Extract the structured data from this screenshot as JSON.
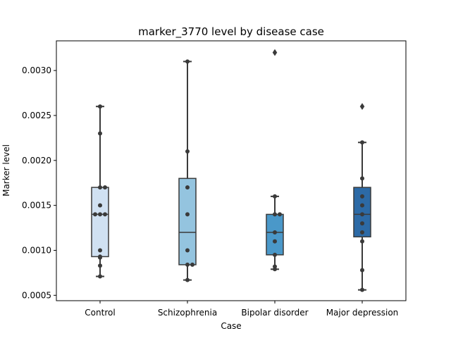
{
  "chart_data": {
    "type": "box",
    "title": "marker_3770 level by disease case",
    "xlabel": "Case",
    "ylabel": "Marker level",
    "ylim": [
      0.00044,
      0.00333
    ],
    "yticks": [
      0.0005,
      0.001,
      0.0015,
      0.002,
      0.0025,
      0.003
    ],
    "ytick_labels": [
      "0.0005",
      "0.0010",
      "0.0015",
      "0.0020",
      "0.0025",
      "0.0030"
    ],
    "grid": false,
    "legend": "none",
    "categories": [
      "Control",
      "Schizophrenia",
      "Bipolar disorder",
      "Major depression"
    ],
    "colors": [
      "#d0e1f2",
      "#94c4df",
      "#4a98c9",
      "#2c6aa6"
    ],
    "edge_color": "#3a3a3a",
    "point_color": "#3a3a3a",
    "boxes": [
      {
        "category": "Control",
        "whislo": 0.00071,
        "q1": 0.00093,
        "med": 0.0014,
        "q3": 0.0017,
        "whishi": 0.0026,
        "fliers": [],
        "points": [
          0.00071,
          0.00083,
          0.00092,
          0.00093,
          0.001,
          0.0014,
          0.0014,
          0.0014,
          0.0015,
          0.0017,
          0.0017,
          0.0023,
          0.0026
        ]
      },
      {
        "category": "Schizophrenia",
        "whislo": 0.00067,
        "q1": 0.00084,
        "med": 0.0012,
        "q3": 0.0018,
        "whishi": 0.0031,
        "fliers": [],
        "points": [
          0.00067,
          0.00084,
          0.00084,
          0.001,
          0.0014,
          0.0017,
          0.0021,
          0.0031
        ]
      },
      {
        "category": "Bipolar disorder",
        "whislo": 0.00079,
        "q1": 0.00095,
        "med": 0.0012,
        "q3": 0.0014,
        "whishi": 0.0016,
        "fliers": [
          0.0032
        ],
        "points": [
          0.00079,
          0.00082,
          0.00095,
          0.0011,
          0.0012,
          0.0014,
          0.0014,
          0.0016
        ]
      },
      {
        "category": "Major depression",
        "whislo": 0.00056,
        "q1": 0.00115,
        "med": 0.0014,
        "q3": 0.0017,
        "whishi": 0.0022,
        "fliers": [
          0.0026
        ],
        "points": [
          0.00056,
          0.00078,
          0.0011,
          0.0012,
          0.0013,
          0.0014,
          0.0015,
          0.0016,
          0.0018,
          0.0022
        ]
      }
    ]
  }
}
